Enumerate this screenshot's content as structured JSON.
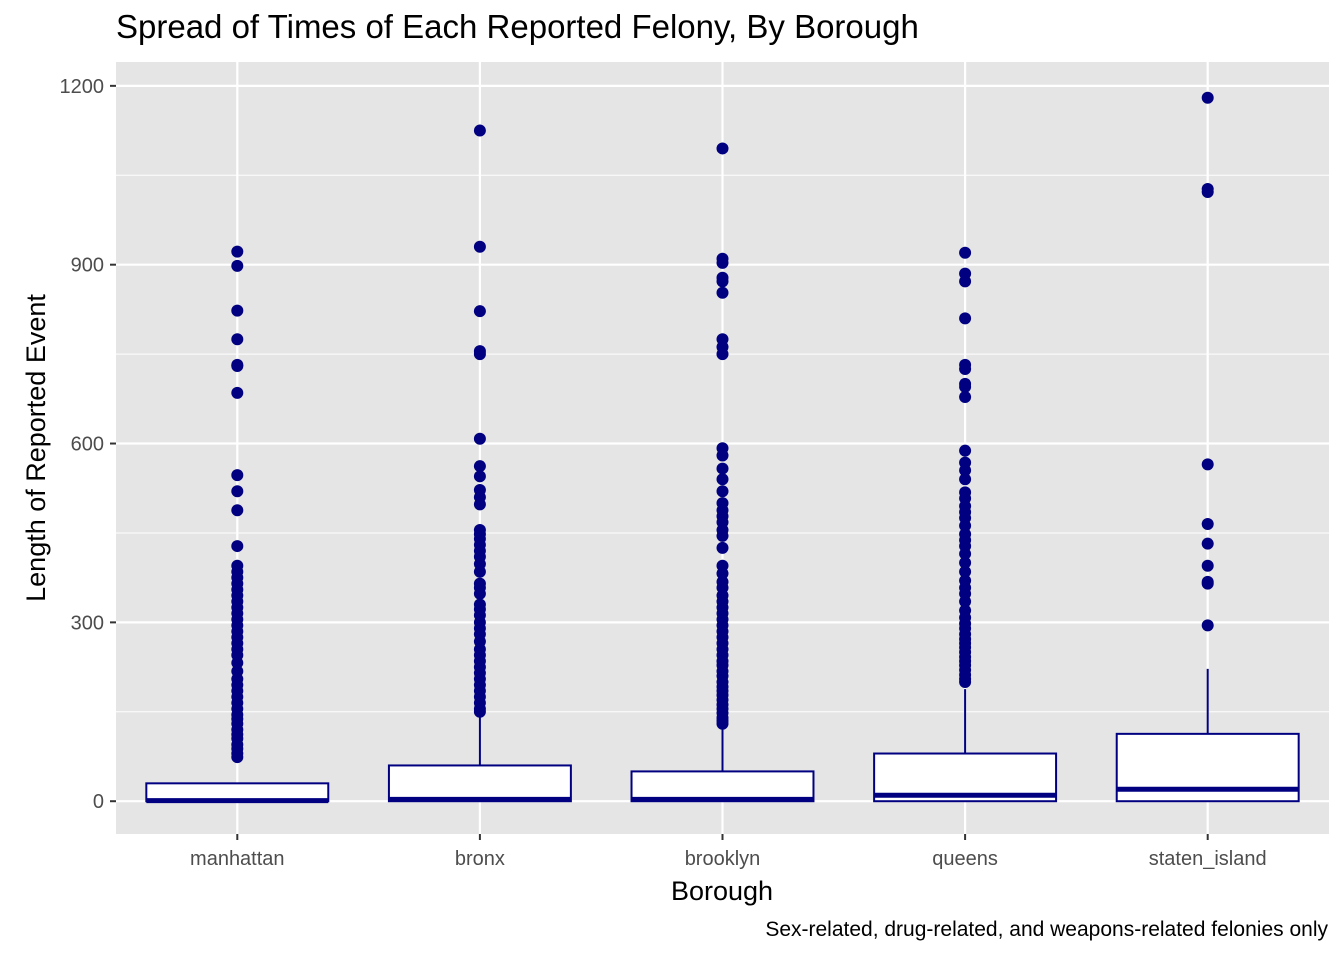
{
  "chart_data": {
    "type": "box",
    "title": "Spread of Times of Each Reported Felony, By Borough",
    "caption": "Sex-related, drug-related, and weapons-related felonies only",
    "xlabel": "Borough",
    "ylabel": "Length of Reported Event",
    "ylim": [
      -55,
      1240
    ],
    "yticks": [
      0,
      300,
      600,
      900,
      1200
    ],
    "grid": true,
    "colors": {
      "panel": "#e5e5e5",
      "grid": "#ffffff",
      "box_line": "#000080",
      "box_fill": "#ffffff",
      "outlier": "#000080"
    },
    "categories": [
      "manhattan",
      "bronx",
      "brooklyn",
      "queens",
      "staten_island"
    ],
    "boxes": [
      {
        "name": "manhattan",
        "min": 0,
        "q1": 0,
        "median": 1,
        "q3": 30,
        "max": 30,
        "outliers": [
          922,
          898,
          823,
          775,
          732,
          730,
          685,
          547,
          520,
          488,
          428,
          395,
          385,
          375,
          365,
          355,
          345,
          335,
          325,
          315,
          305,
          295,
          285,
          275,
          265,
          255,
          245,
          232,
          218,
          205,
          195,
          185,
          175,
          165,
          155,
          145,
          138,
          130,
          120,
          112,
          105,
          95,
          88,
          80,
          74
        ]
      },
      {
        "name": "bronx",
        "min": 0,
        "q1": 0,
        "median": 3,
        "q3": 60,
        "max": 145,
        "outliers": [
          1125,
          930,
          822,
          755,
          750,
          608,
          562,
          545,
          522,
          510,
          498,
          455,
          448,
          440,
          430,
          420,
          410,
          398,
          385,
          365,
          358,
          348,
          330,
          322,
          312,
          300,
          290,
          280,
          268,
          255,
          245,
          235,
          225,
          215,
          205,
          195,
          185,
          175,
          165,
          155,
          150
        ]
      },
      {
        "name": "brooklyn",
        "min": 0,
        "q1": 0,
        "median": 3,
        "q3": 50,
        "max": 125,
        "outliers": [
          1095,
          910,
          903,
          878,
          872,
          853,
          775,
          762,
          750,
          592,
          580,
          558,
          540,
          520,
          500,
          488,
          478,
          468,
          455,
          445,
          425,
          395,
          382,
          368,
          358,
          345,
          335,
          325,
          315,
          305,
          295,
          285,
          275,
          265,
          255,
          245,
          235,
          228,
          218,
          210,
          200,
          192,
          185,
          178,
          170,
          162,
          155,
          148,
          140,
          135,
          130
        ]
      },
      {
        "name": "queens",
        "min": 0,
        "q1": 0,
        "median": 10,
        "q3": 80,
        "max": 188,
        "outliers": [
          920,
          885,
          872,
          810,
          732,
          725,
          700,
          695,
          678,
          588,
          568,
          555,
          540,
          518,
          508,
          495,
          485,
          475,
          462,
          448,
          438,
          428,
          415,
          400,
          385,
          370,
          358,
          348,
          335,
          320,
          308,
          298,
          290,
          280,
          272,
          265,
          258,
          250,
          242,
          235,
          228,
          220,
          212,
          205,
          200
        ]
      },
      {
        "name": "staten_island",
        "min": 0,
        "q1": 0,
        "median": 20,
        "q3": 113,
        "max": 222,
        "outliers": [
          1180,
          1027,
          1022,
          565,
          465,
          432,
          395,
          368,
          365,
          295
        ]
      }
    ]
  }
}
